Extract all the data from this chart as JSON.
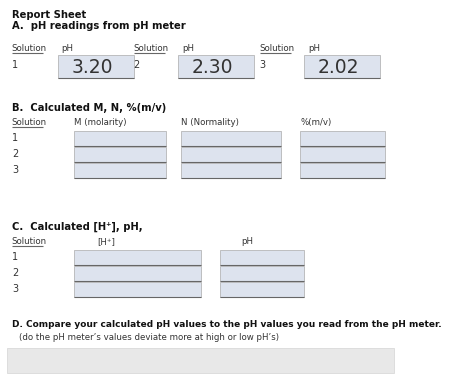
{
  "title_line1": "Report Sheet",
  "title_line2": "A.  pH readings from pH meter",
  "section_A_ph_values": [
    "3.20",
    "2.30",
    "2.02"
  ],
  "section_B_header": "B.  Calculated M, N, %(m/v)",
  "section_B_cols": [
    "Solution",
    "M (molarity)",
    "N (Normality)",
    "%(m/v)"
  ],
  "section_C_header": "C.  Calculated [H⁺], pH,",
  "section_C_cols": [
    "Solution",
    "[H⁺]",
    "pH"
  ],
  "section_D_header": "D. Compare your calculated pH values to the pH values you read from the pH meter.",
  "section_D_sub": "(do the pH meter’s values deviate more at high or low pH’s)",
  "box_color": "#dde3ee",
  "box_edge": "#aaaaaa",
  "white": "#ffffff",
  "text_color": "#333333",
  "bold_color": "#111111",
  "underline_color": "#666666",
  "bottom_gray": "#e8e8e8",
  "bottom_edge": "#cccccc"
}
